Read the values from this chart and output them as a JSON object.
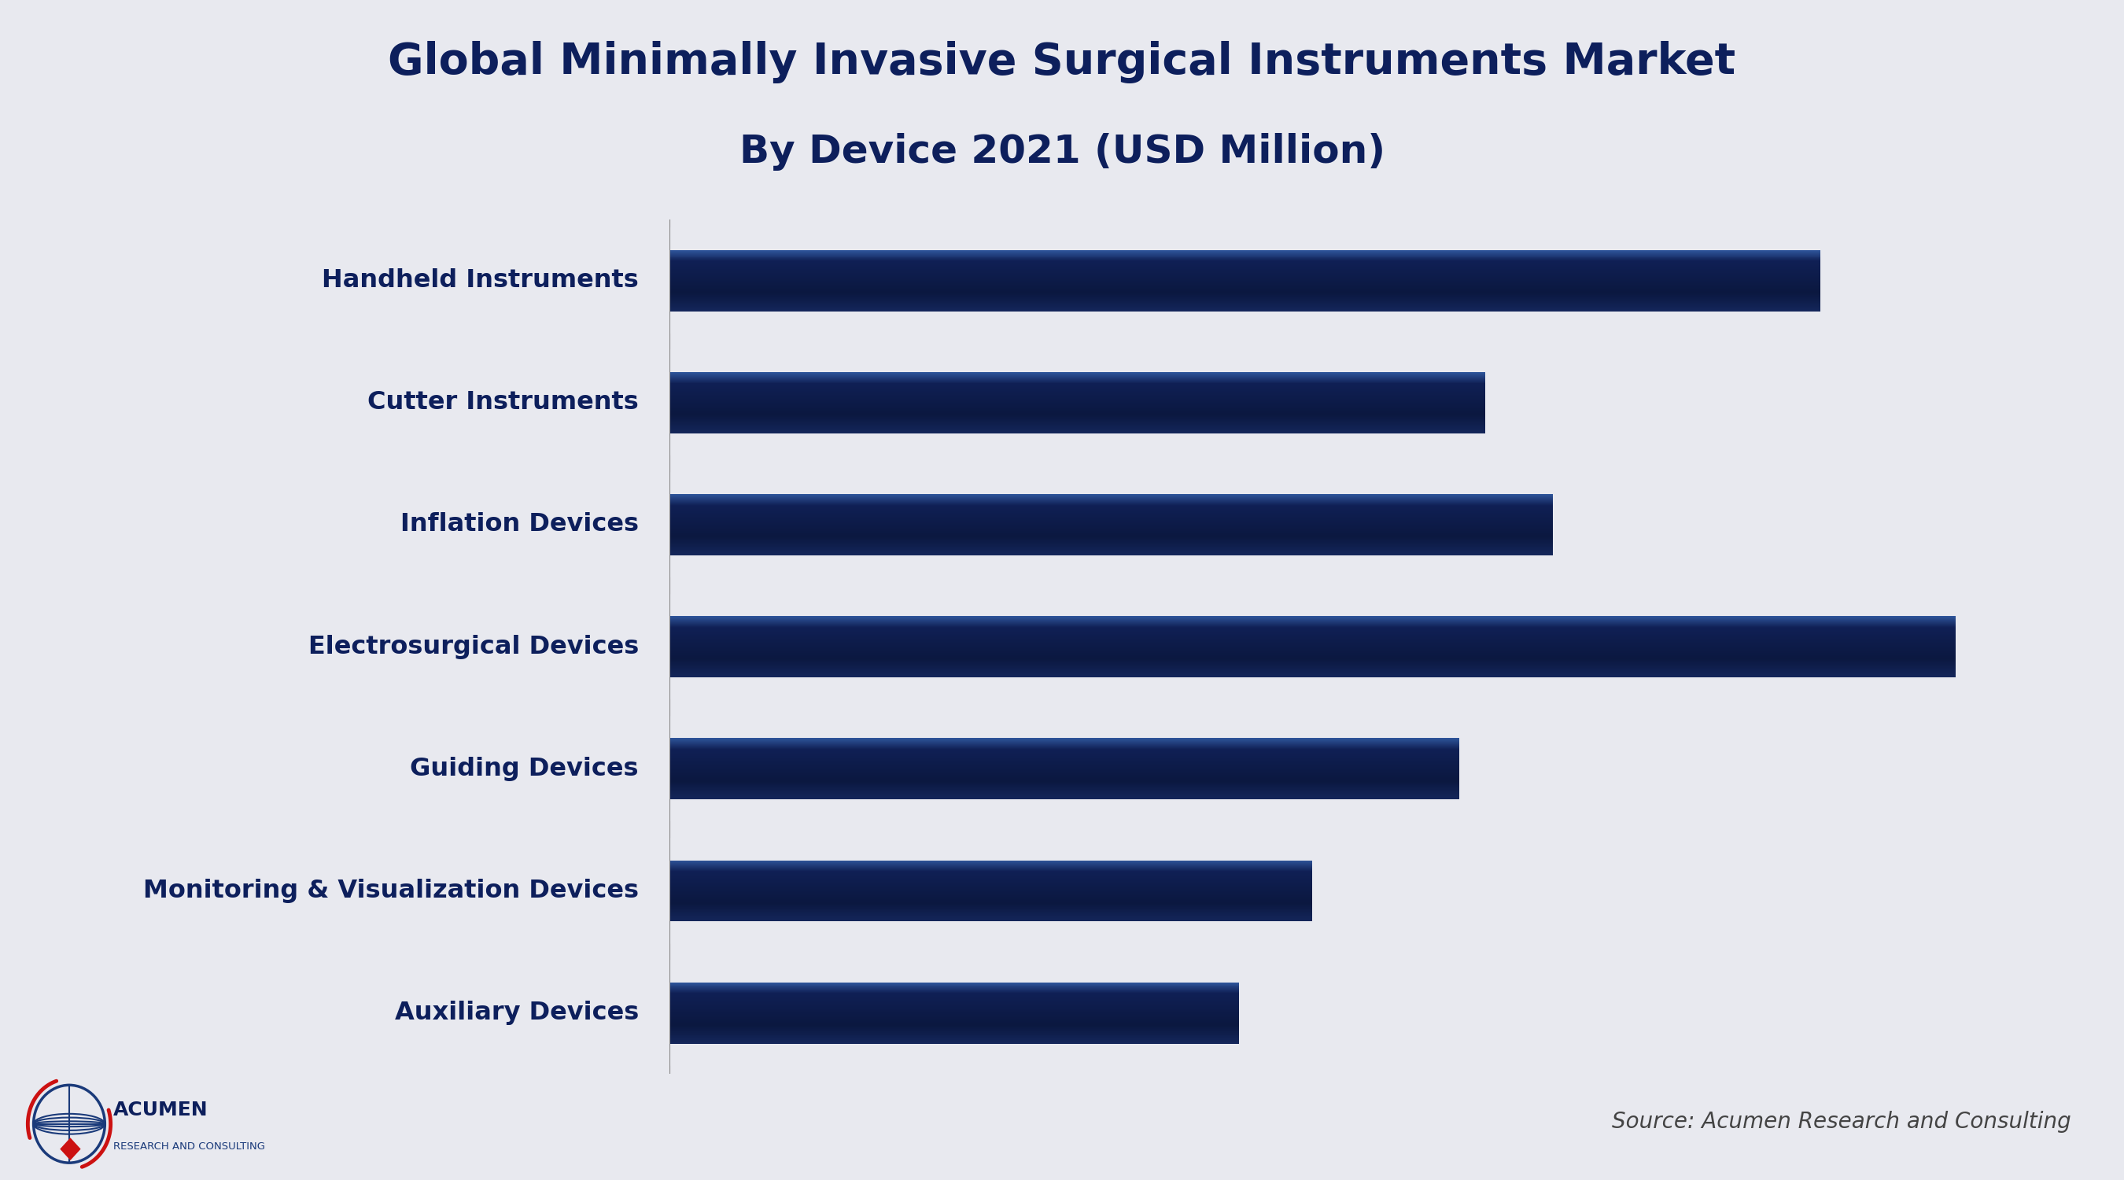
{
  "title_line1": "Global Minimally Invasive Surgical Instruments Market",
  "title_line2": "By Device 2021 (USD Million)",
  "categories": [
    "Handheld Instruments",
    "Cutter Instruments",
    "Inflation Devices",
    "Electrosurgical Devices",
    "Guiding Devices",
    "Monitoring & Visualization Devices",
    "Auxiliary Devices"
  ],
  "values": [
    2200,
    1560,
    1690,
    2460,
    1510,
    1230,
    1090
  ],
  "bar_color_top": "#2e5499",
  "bar_color_dark": "#0d1840",
  "bg_color": "#e8e9ef",
  "title_color": "#0d1f5c",
  "label_color": "#0d1f5c",
  "separator_color": "#1a2e6e",
  "source_text": "Source: Acumen Research and Consulting",
  "xlim_max": 2700,
  "figsize": [
    27.0,
    15.0
  ]
}
